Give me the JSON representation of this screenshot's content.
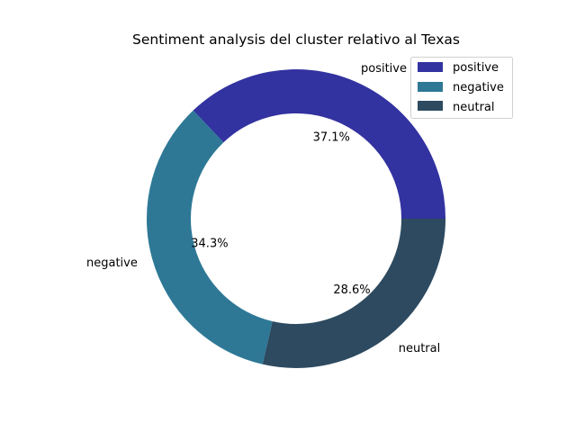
{
  "chart_data": {
    "type": "pie",
    "variant": "donut",
    "title": "Sentiment analysis del cluster relativo al Texas",
    "categories": [
      "positive",
      "negative",
      "neutral"
    ],
    "values": [
      37.1,
      34.3,
      28.6
    ],
    "percent_labels": [
      "37.1%",
      "34.3%",
      "28.6%"
    ],
    "colors": [
      "#3232a0",
      "#2e7896",
      "#2d4a60"
    ],
    "legend": {
      "placement": "top-right",
      "entries": [
        "positive",
        "negative",
        "neutral"
      ]
    }
  }
}
